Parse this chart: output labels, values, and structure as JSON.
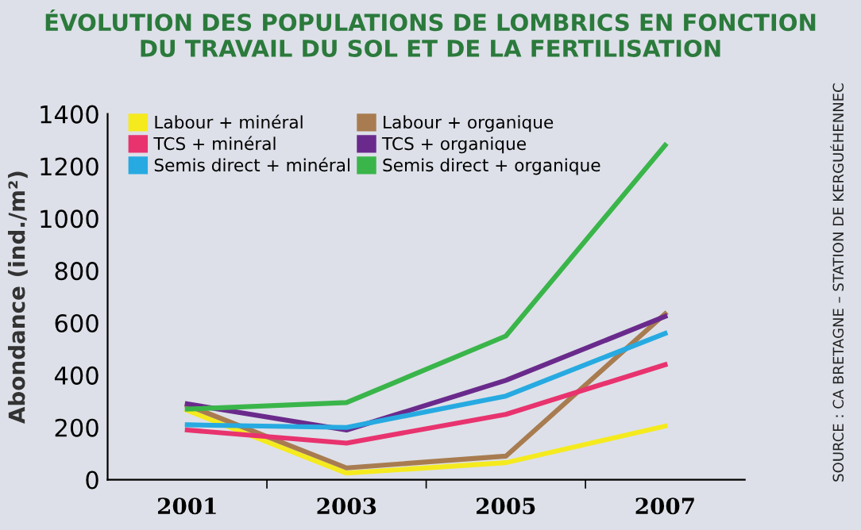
{
  "chart_data": {
    "type": "line",
    "title": "ÉVOLUTION DES POPULATIONS DE LOMBRICS EN FONCTION\nDU TRAVAIL DU SOL ET DE LA FERTILISATION",
    "ylabel": "Abondance (ind./m²)",
    "categories": [
      "2001",
      "2003",
      "2005",
      "2007"
    ],
    "series": [
      {
        "name": "Labour + minéral",
        "color": "#f5ea1e",
        "values": [
          265,
          25,
          65,
          205
        ]
      },
      {
        "name": "Labour + organique",
        "color": "#a87c50",
        "values": [
          285,
          45,
          90,
          635
        ]
      },
      {
        "name": "TCS + minéral",
        "color": "#e8336f",
        "values": [
          190,
          140,
          250,
          440
        ]
      },
      {
        "name": "TCS + organique",
        "color": "#6a2a8c",
        "values": [
          290,
          190,
          380,
          625
        ]
      },
      {
        "name": "Semis direct + minéral",
        "color": "#27aae1",
        "values": [
          210,
          200,
          320,
          560
        ]
      },
      {
        "name": "Semis direct + organique",
        "color": "#3ab54a",
        "values": [
          270,
          295,
          550,
          1280
        ]
      }
    ],
    "ylim": [
      0,
      1400
    ],
    "yticks": [
      0,
      200,
      400,
      600,
      800,
      1000,
      1200,
      1400
    ],
    "grid": false,
    "legend": "top left",
    "marker": "none",
    "line_style": "solid",
    "annotations": [
      "SOURCE : CA BRETAGNE – STATION DE KERGUÉHENNEC"
    ]
  }
}
